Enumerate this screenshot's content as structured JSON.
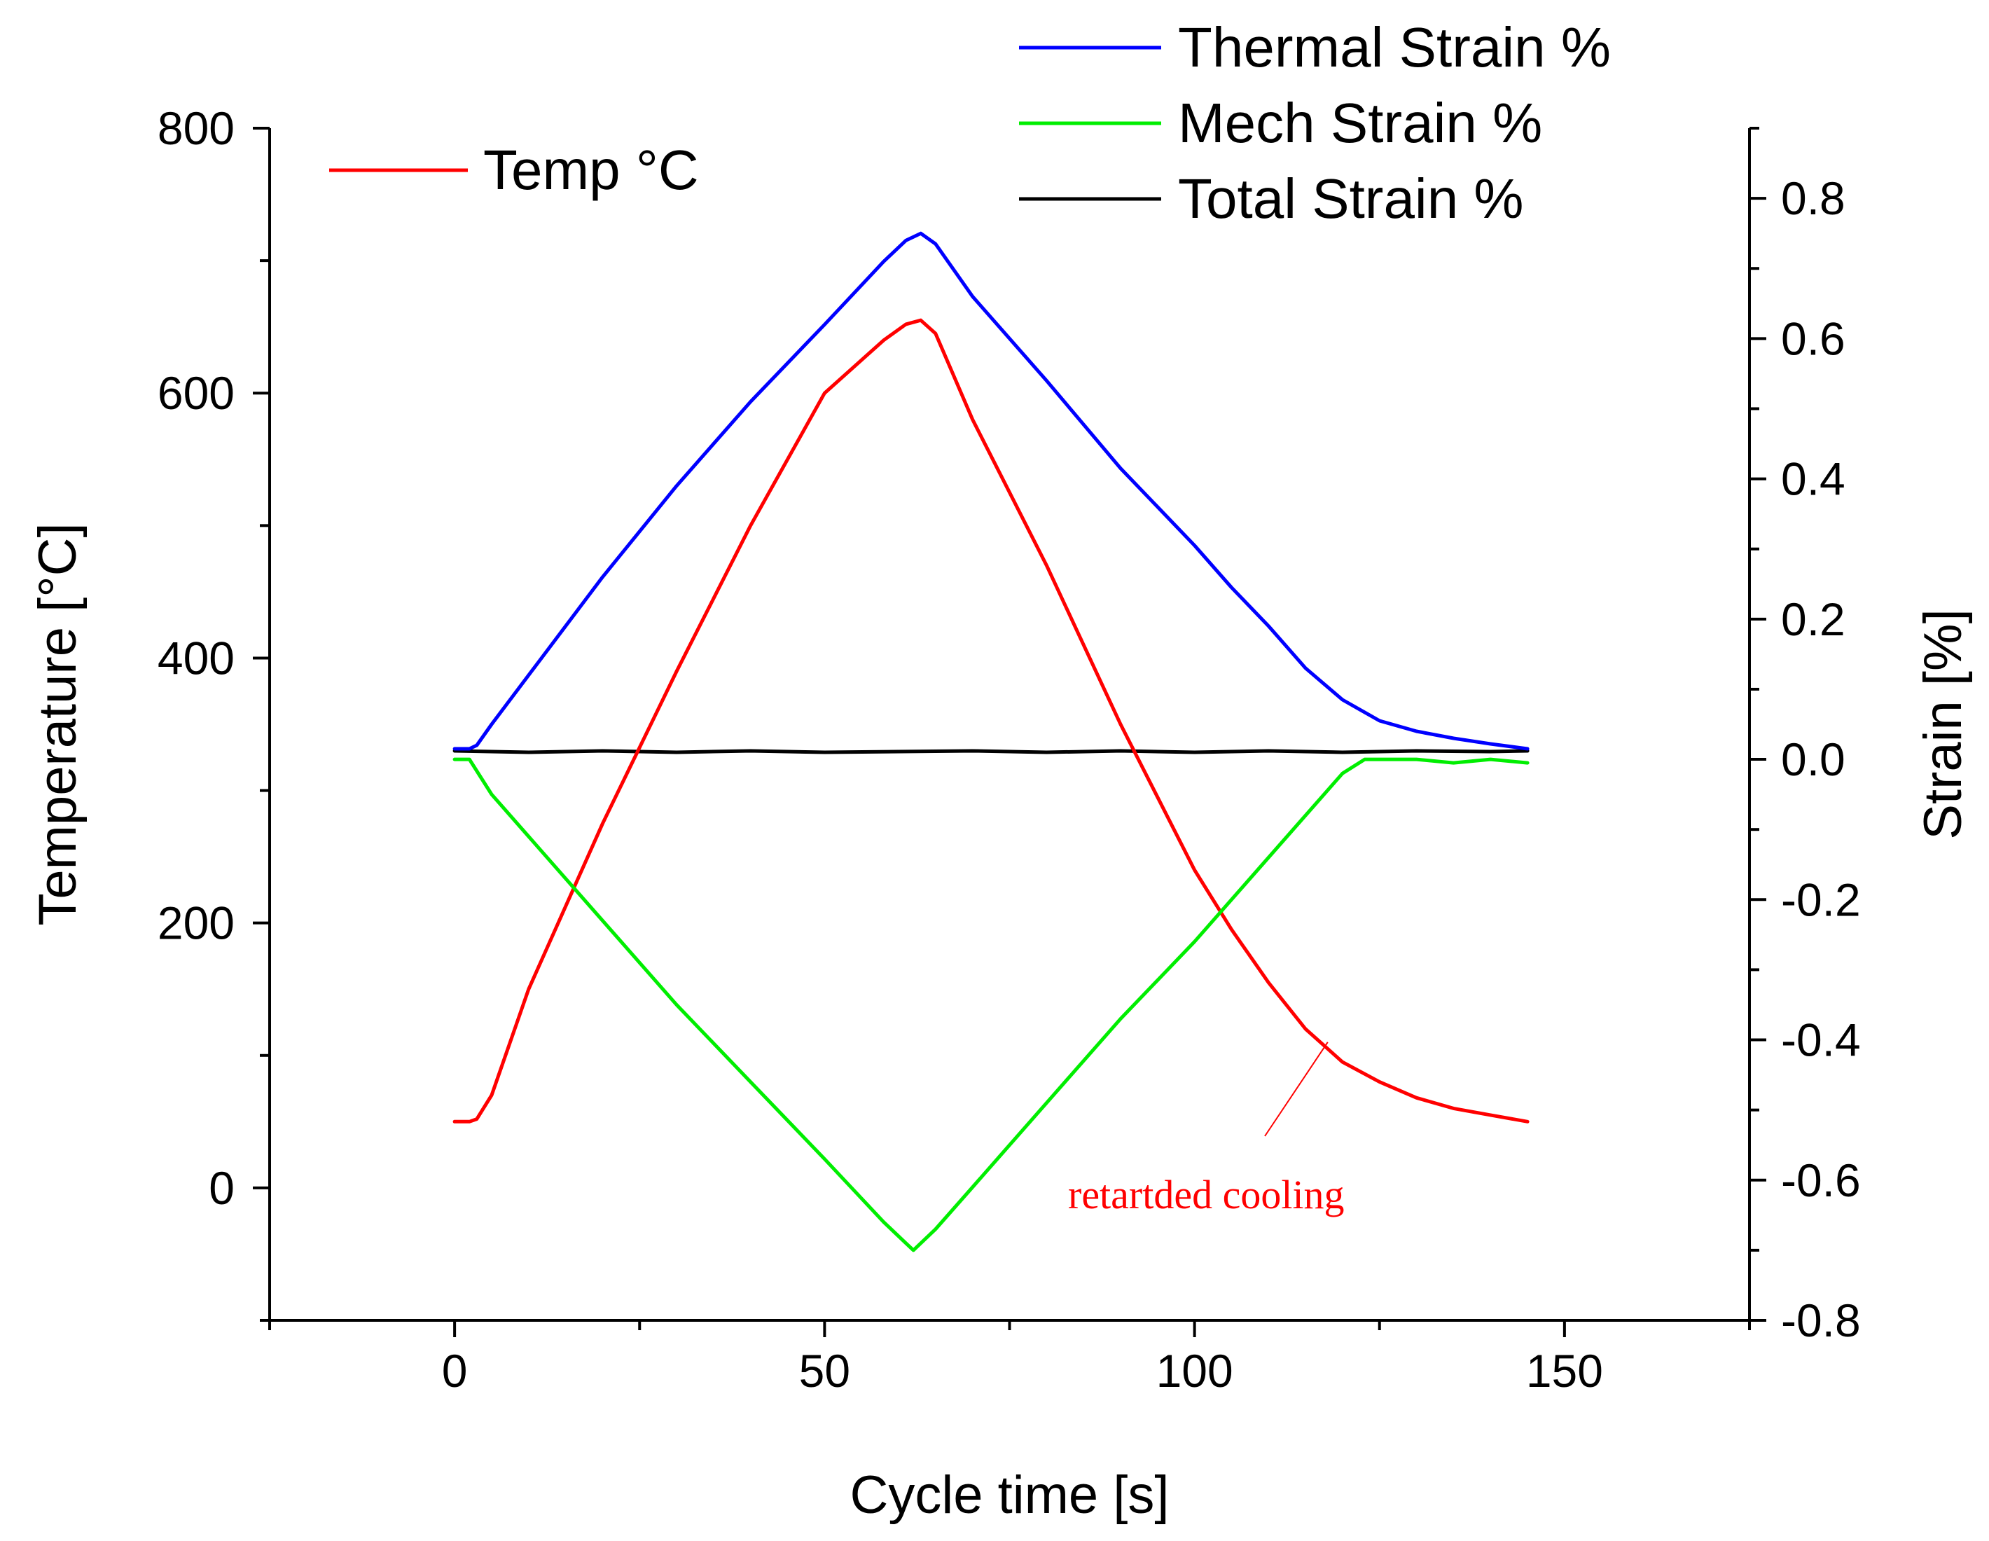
{
  "chart_data": {
    "type": "line",
    "xlabel": "Cycle time [s]",
    "ylabel": "Temperature [°C]",
    "y2label": "Strain [%]",
    "xlim": [
      -25,
      175
    ],
    "ylim": [
      -100,
      800
    ],
    "y2lim": [
      -0.8,
      0.9
    ],
    "x_ticks": [
      0,
      50,
      100,
      150
    ],
    "y_ticks": [
      0,
      200,
      400,
      600,
      800
    ],
    "y2_ticks": [
      -0.8,
      -0.6,
      -0.4,
      -0.2,
      0.0,
      0.2,
      0.4,
      0.6,
      0.8
    ],
    "x_tick_labels": [
      "0",
      "50",
      "100",
      "150"
    ],
    "y_tick_labels": [
      "0",
      "200",
      "400",
      "600",
      "800"
    ],
    "y2_tick_labels": [
      "-0.8",
      "-0.6",
      "-0.4",
      "-0.2",
      "0.0",
      "0.2",
      "0.4",
      "0.6",
      "0.8"
    ],
    "legend_left": "top-left",
    "legend_right": "top-right",
    "series": [
      {
        "name": "Temp °C",
        "axis": "left",
        "color": "#ff0000",
        "x": [
          0,
          2,
          3,
          5,
          10,
          20,
          30,
          40,
          50,
          58,
          61,
          63,
          65,
          70,
          80,
          90,
          100,
          105,
          110,
          115,
          120,
          125,
          130,
          135,
          140,
          145
        ],
        "y": [
          50,
          50,
          52,
          70,
          150,
          275,
          390,
          500,
          600,
          640,
          652,
          655,
          645,
          580,
          470,
          350,
          240,
          195,
          155,
          120,
          95,
          80,
          68,
          60,
          55,
          50
        ]
      },
      {
        "name": "Thermal Strain %",
        "axis": "right",
        "color": "#0000ff",
        "x": [
          0,
          2,
          3,
          5,
          10,
          20,
          30,
          40,
          50,
          58,
          61,
          63,
          65,
          70,
          80,
          90,
          100,
          105,
          110,
          115,
          120,
          125,
          130,
          135,
          140,
          145
        ],
        "y": [
          0.015,
          0.015,
          0.02,
          0.05,
          0.12,
          0.26,
          0.39,
          0.51,
          0.62,
          0.71,
          0.74,
          0.75,
          0.735,
          0.66,
          0.54,
          0.415,
          0.305,
          0.245,
          0.19,
          0.13,
          0.085,
          0.055,
          0.04,
          0.03,
          0.022,
          0.015
        ]
      },
      {
        "name": "Mech Strain %",
        "axis": "right",
        "color": "#00ee00",
        "x": [
          0,
          2,
          5,
          10,
          20,
          30,
          40,
          50,
          58,
          61,
          62,
          65,
          70,
          80,
          90,
          100,
          110,
          120,
          123,
          125,
          130,
          135,
          140,
          145
        ],
        "y": [
          0.0,
          0.0,
          -0.05,
          -0.11,
          -0.23,
          -0.35,
          -0.46,
          -0.57,
          -0.66,
          -0.69,
          -0.7,
          -0.67,
          -0.61,
          -0.49,
          -0.37,
          -0.26,
          -0.14,
          -0.02,
          0.0,
          0.0,
          0.0,
          -0.005,
          0.0,
          -0.005
        ]
      },
      {
        "name": "Total Strain %",
        "axis": "right",
        "color": "#000000",
        "x": [
          0,
          10,
          20,
          30,
          40,
          50,
          60,
          70,
          80,
          90,
          100,
          110,
          120,
          130,
          140,
          145
        ],
        "y": [
          0.012,
          0.01,
          0.012,
          0.01,
          0.012,
          0.01,
          0.011,
          0.012,
          0.01,
          0.012,
          0.01,
          0.012,
          0.01,
          0.012,
          0.011,
          0.012
        ]
      }
    ],
    "annotations": [
      {
        "text": "retartded cooling",
        "color": "#ff0000",
        "target_x": 118,
        "target_y": 110
      }
    ]
  }
}
